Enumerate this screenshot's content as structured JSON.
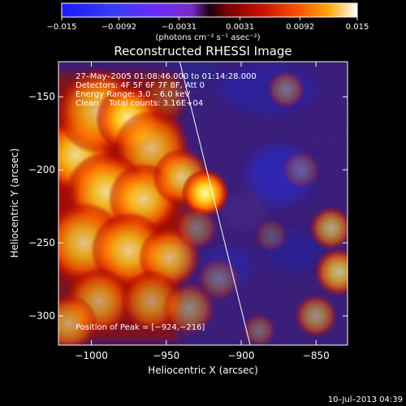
{
  "chart_data": {
    "type": "heatmap",
    "title": "Reconstructed RHESSI Image",
    "xlabel": "Heliocentric X (arcsec)",
    "ylabel": "Heliocentric Y (arcsec)",
    "xlim": [
      -1022,
      -829
    ],
    "ylim": [
      -320,
      -126
    ],
    "x_ticks": [
      -1000,
      -950,
      -900,
      -850
    ],
    "y_ticks": [
      -150,
      -200,
      -250,
      -300
    ],
    "x_tick_labels": [
      "−1000",
      "−950",
      "−900",
      "−850"
    ],
    "y_tick_labels": [
      "−150",
      "−200",
      "−250",
      "−300"
    ],
    "colorbar": {
      "ticks": [
        -0.015,
        -0.0092,
        -0.0031,
        0.0031,
        0.0092,
        0.015
      ],
      "tick_labels": [
        "−0.015",
        "−0.0092",
        "−0.0031",
        "0.0031",
        "0.0092",
        "0.015"
      ],
      "unit_label": "(photons cm⁻² s⁻¹ asec⁻²)",
      "range": [
        -0.015,
        0.015
      ]
    },
    "annotations": {
      "time": "27–May–2005 01:08:46.000 to 01:14:28.000",
      "detectors": "Detectors: 4F 5F 6F 7F 8F, Att 0",
      "energy": "Energy Range: 3.0 – 6.0 keV",
      "clean": "Clean    Total counts: 3.16E+04",
      "peak": "Position of Peak = [−924,−216]"
    },
    "peak": [
      -924,
      -216
    ],
    "limb_line": [
      [
        -941,
        -126
      ],
      [
        -894,
        -320
      ]
    ],
    "footer_date": "10–Jul–2013 04:39",
    "blobs": [
      {
        "x": -1010,
        "y": -190,
        "s": 16,
        "a": 0.85
      },
      {
        "x": -995,
        "y": -160,
        "s": 18,
        "a": 0.75
      },
      {
        "x": -975,
        "y": -165,
        "s": 14,
        "a": 0.9
      },
      {
        "x": -960,
        "y": -185,
        "s": 16,
        "a": 0.7
      },
      {
        "x": -990,
        "y": -215,
        "s": 17,
        "a": 0.85
      },
      {
        "x": -965,
        "y": -220,
        "s": 15,
        "a": 0.8
      },
      {
        "x": -940,
        "y": -205,
        "s": 12,
        "a": 0.75
      },
      {
        "x": -924,
        "y": -216,
        "s": 10,
        "a": 1.0
      },
      {
        "x": -1005,
        "y": -250,
        "s": 17,
        "a": 0.75
      },
      {
        "x": -975,
        "y": -255,
        "s": 16,
        "a": 0.8
      },
      {
        "x": -948,
        "y": -260,
        "s": 13,
        "a": 0.7
      },
      {
        "x": -995,
        "y": -290,
        "s": 14,
        "a": 0.6
      },
      {
        "x": -960,
        "y": -290,
        "s": 13,
        "a": 0.55
      },
      {
        "x": -1015,
        "y": -305,
        "s": 12,
        "a": 0.6
      },
      {
        "x": -935,
        "y": -295,
        "s": 11,
        "a": 0.45
      },
      {
        "x": -915,
        "y": -275,
        "s": 9,
        "a": 0.3
      },
      {
        "x": -930,
        "y": -240,
        "s": 9,
        "a": 0.35
      },
      {
        "x": -950,
        "y": -150,
        "s": 10,
        "a": 0.25
      },
      {
        "x": -870,
        "y": -145,
        "s": 8,
        "a": 0.35
      },
      {
        "x": -860,
        "y": -200,
        "s": 8,
        "a": 0.25
      },
      {
        "x": -840,
        "y": -240,
        "s": 9,
        "a": 0.6
      },
      {
        "x": -835,
        "y": -270,
        "s": 10,
        "a": 0.7
      },
      {
        "x": -850,
        "y": -300,
        "s": 9,
        "a": 0.5
      },
      {
        "x": -888,
        "y": -310,
        "s": 7,
        "a": 0.3
      },
      {
        "x": -880,
        "y": -245,
        "s": 7,
        "a": 0.22
      }
    ]
  }
}
